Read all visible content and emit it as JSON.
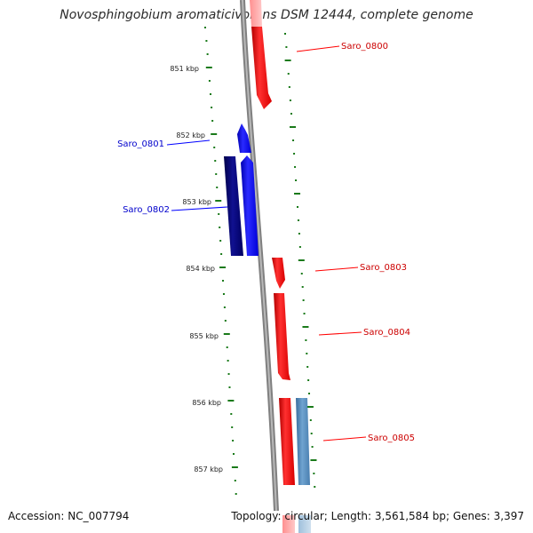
{
  "title": "Novosphingobium aromaticivorans DSM 12444, complete genome",
  "accession": "Accession: NC_007794",
  "summary": "Topology: circular; Length: 3,561,584 bp; Genes: 3,397",
  "ruler": {
    "ticks": [
      "851 kbp",
      "852 kbp",
      "853 kbp",
      "854 kbp",
      "855 kbp",
      "856 kbp",
      "857 kbp"
    ]
  },
  "genes": [
    {
      "name": "Saro_0800",
      "strand": "forward",
      "color": "#ff0000"
    },
    {
      "name": "Saro_0801",
      "strand": "reverse",
      "color": "#0000ff"
    },
    {
      "name": "Saro_0802",
      "strand": "reverse",
      "color": "#0000ff"
    },
    {
      "name": "Saro_0803",
      "strand": "forward",
      "color": "#ff0000"
    },
    {
      "name": "Saro_0804",
      "strand": "forward",
      "color": "#ff0000"
    },
    {
      "name": "Saro_0805",
      "strand": "forward",
      "color": "#ff0000"
    }
  ],
  "colors": {
    "forward": "#ff0000",
    "reverse": "#0000ff",
    "reverse_dark": "#00007a",
    "other": "#4f86b8",
    "tick": "#1a7a1a",
    "backbone": "#808080"
  }
}
